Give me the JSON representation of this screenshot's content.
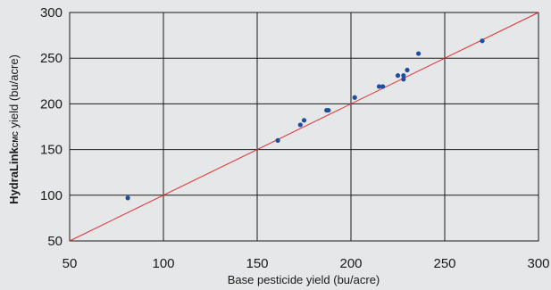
{
  "chart_data": {
    "type": "scatter",
    "xlabel": "Base pesticide yield (bu/acre)",
    "ylabel": {
      "brand": "HydraLink",
      "sub": "CMC",
      "rest": " yield (bu/acre)"
    },
    "xlim": [
      50,
      300
    ],
    "ylim": [
      50,
      300
    ],
    "x_ticks": [
      "50",
      "100",
      "150",
      "200",
      "250",
      "300"
    ],
    "y_ticks": [
      "50",
      "100",
      "150",
      "200",
      "250",
      "300"
    ],
    "grid": true,
    "reference_line": {
      "from": [
        50,
        50
      ],
      "to": [
        300,
        300
      ],
      "color": "#e03030"
    },
    "point_color": "#1f4e9e",
    "background": "#e6e7e8",
    "points": [
      {
        "x": 81,
        "y": 97
      },
      {
        "x": 161,
        "y": 160
      },
      {
        "x": 173,
        "y": 177
      },
      {
        "x": 175,
        "y": 182
      },
      {
        "x": 187,
        "y": 193
      },
      {
        "x": 188,
        "y": 193
      },
      {
        "x": 202,
        "y": 207
      },
      {
        "x": 215,
        "y": 219
      },
      {
        "x": 217,
        "y": 219
      },
      {
        "x": 225,
        "y": 231
      },
      {
        "x": 228,
        "y": 227
      },
      {
        "x": 228,
        "y": 231
      },
      {
        "x": 230,
        "y": 237
      },
      {
        "x": 236,
        "y": 255
      },
      {
        "x": 270,
        "y": 269
      }
    ]
  }
}
